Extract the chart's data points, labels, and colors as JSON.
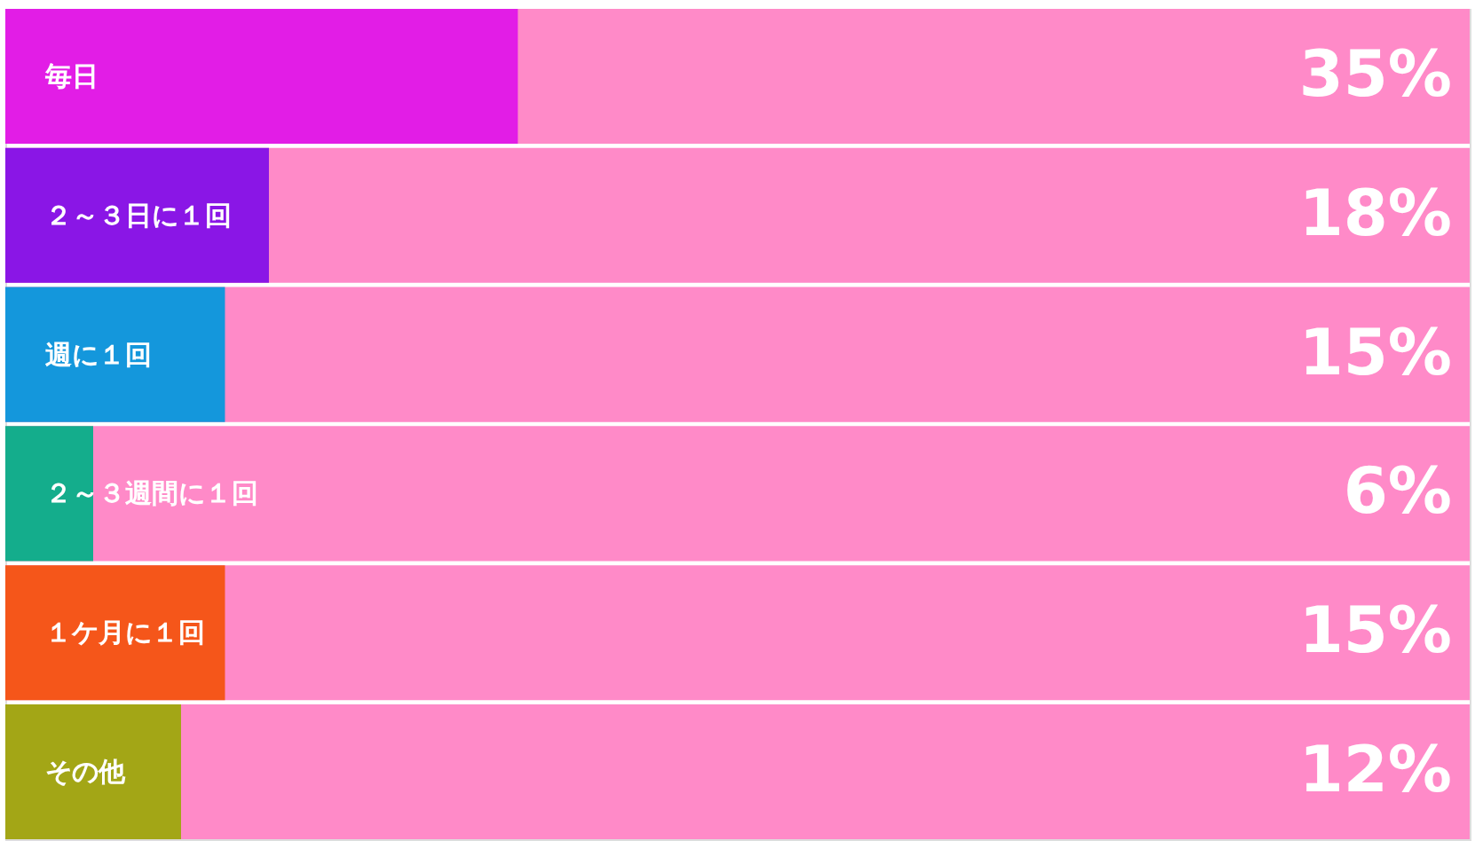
{
  "chart_data": {
    "type": "bar",
    "orientation": "horizontal",
    "categories": [
      "毎日",
      "２～３日に１回",
      "週に１回",
      "２～３週間に１回",
      "１ケ月に１回",
      "その他"
    ],
    "values": [
      35,
      18,
      15,
      6,
      15,
      12
    ],
    "value_labels": [
      "35%",
      "18%",
      "15%",
      "6%",
      "15%",
      "12%"
    ],
    "colors": [
      "#e21de6",
      "#8a16e6",
      "#1497dc",
      "#14ad8c",
      "#f5561a",
      "#a3a616"
    ],
    "xlim": [
      0,
      100
    ],
    "tick_labels": "y",
    "grid": false,
    "legend": false
  }
}
